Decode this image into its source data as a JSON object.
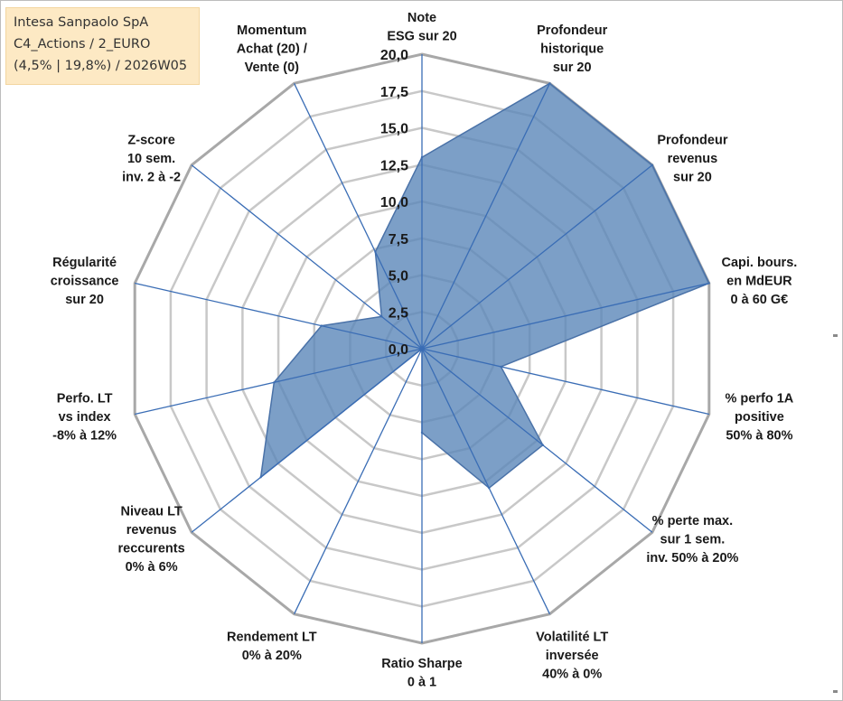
{
  "info_box": {
    "line1": "Intesa Sanpaolo SpA",
    "line2": "C4_Actions / 2_EURO",
    "line3": "(4,5% | 19,8%) / 2026W05"
  },
  "colors": {
    "fill": "#5b87b9",
    "fill_opacity": 0.8,
    "series_stroke": "#4a72a8",
    "spoke": "#3a6db5",
    "grid": "#c8c8c8",
    "outer_ring": "#a8a8a8",
    "text": "#1a1a1a",
    "box_bg": "#fde9c4"
  },
  "chart_data": {
    "type": "radar",
    "rmin": 0,
    "rmax": 20,
    "tick_step": 2.5,
    "tick_labels": [
      "0,0",
      "2,5",
      "5,0",
      "7,5",
      "10,0",
      "12,5",
      "15,0",
      "17,5",
      "20,0"
    ],
    "categories": [
      [
        "Note",
        "ESG sur 20"
      ],
      [
        "Profondeur",
        "historique",
        "sur 20"
      ],
      [
        "Profondeur",
        "revenus",
        "sur 20"
      ],
      [
        "Capi. bours.",
        "en MdEUR",
        "0 à 60 G€"
      ],
      [
        "% perfo 1A",
        "positive",
        "50% à 80%"
      ],
      [
        "% perte max.",
        "sur 1 sem.",
        "inv. 50% à 20%"
      ],
      [
        "Volatilité LT",
        "inversée",
        "40% à 0%"
      ],
      [
        "Ratio Sharpe",
        "0 à 1"
      ],
      [
        "Rendement LT",
        "0% à 20%"
      ],
      [
        "Niveau LT",
        "revenus",
        "reccurents",
        "0% à 6%"
      ],
      [
        "Perfo. LT",
        "vs index",
        "-8% à 12%"
      ],
      [
        "Régularité",
        "croissance",
        "sur 20"
      ],
      [
        "Z-score",
        "10 sem.",
        "inv. 2 à -2"
      ],
      [
        "Momentum",
        "Achat (20) /",
        "Vente (0)"
      ]
    ],
    "series": [
      {
        "values": [
          13,
          20,
          20,
          20,
          5.5,
          10.5,
          10.5,
          5.7,
          0,
          14,
          10.3,
          7,
          3.5,
          7.3
        ]
      }
    ],
    "grid": true,
    "legend": "none"
  }
}
